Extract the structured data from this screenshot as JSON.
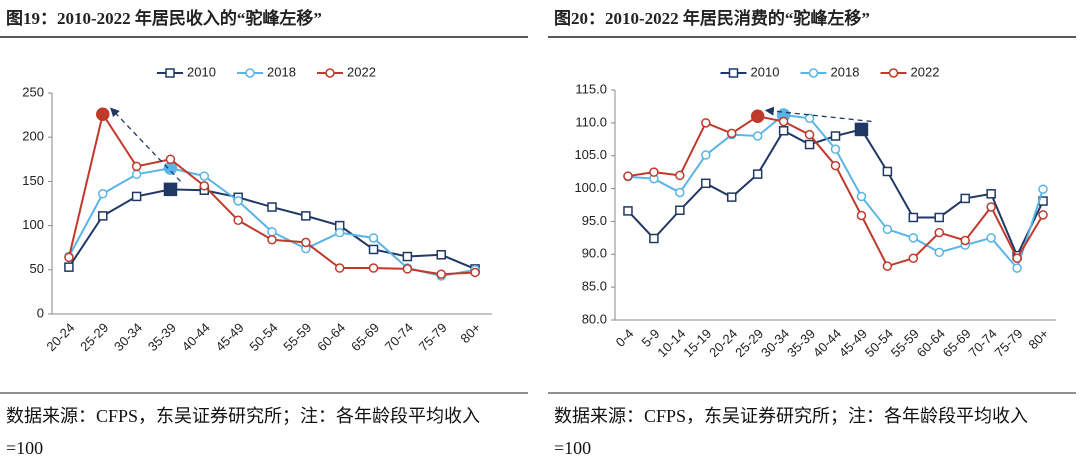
{
  "chart_data": [
    {
      "type": "line",
      "title": "图19：2010-2022 年居民收入的“驼峰左移”",
      "categories": [
        "20-24",
        "25-29",
        "30-34",
        "35-39",
        "40-44",
        "45-49",
        "50-54",
        "55-59",
        "60-64",
        "65-69",
        "70-74",
        "75-79",
        "80+"
      ],
      "series": [
        {
          "name": "2010",
          "color": "#1f3864",
          "values": [
            53,
            111,
            133,
            141,
            140,
            132,
            121,
            111,
            100,
            73,
            65,
            67,
            51
          ]
        },
        {
          "name": "2018",
          "color": "#5ab4e6",
          "values": [
            65,
            136,
            158,
            165,
            156,
            128,
            93,
            74,
            92,
            86,
            52,
            43,
            50
          ]
        },
        {
          "name": "2022",
          "color": "#c0392b",
          "values": [
            64,
            226,
            167,
            175,
            145,
            106,
            84,
            81,
            52,
            52,
            51,
            45,
            47
          ]
        }
      ],
      "ylim": [
        0,
        250
      ],
      "yticks": [
        0,
        50,
        100,
        150,
        200,
        250
      ],
      "source": "数据来源：CFPS，东吴证券研究所；注：各年龄段平均收入=100"
    },
    {
      "type": "line",
      "title": "图20：2010-2022 年居民消费的“驼峰左移”",
      "categories": [
        "0-4",
        "5-9",
        "10-14",
        "15-19",
        "20-24",
        "25-29",
        "30-34",
        "35-39",
        "40-44",
        "45-49",
        "50-54",
        "55-59",
        "60-64",
        "65-69",
        "70-74",
        "75-79",
        "80+"
      ],
      "series": [
        {
          "name": "2010",
          "color": "#1f3864",
          "values": [
            96.6,
            92.4,
            96.7,
            100.8,
            98.7,
            102.2,
            108.8,
            106.7,
            108.0,
            109.0,
            102.6,
            95.6,
            95.6,
            98.5,
            99.2,
            89.8,
            98.1
          ]
        },
        {
          "name": "2018",
          "color": "#5ab4e6",
          "values": [
            101.8,
            101.5,
            99.4,
            105.1,
            108.2,
            108.0,
            111.2,
            110.7,
            106.0,
            98.8,
            93.8,
            92.5,
            90.3,
            91.4,
            92.5,
            87.9,
            99.9
          ]
        },
        {
          "name": "2022",
          "color": "#c0392b",
          "values": [
            101.9,
            102.5,
            102.0,
            110.0,
            108.4,
            111.0,
            110.2,
            108.2,
            103.5,
            95.9,
            88.2,
            89.4,
            93.3,
            92.1,
            97.2,
            89.4,
            96.0
          ]
        }
      ],
      "ylim": [
        80,
        115
      ],
      "yticks": [
        {
          "value": 80,
          "label": "80.0"
        },
        {
          "value": 85,
          "label": "85.0"
        },
        {
          "value": 90,
          "label": "90.0"
        },
        {
          "value": 95,
          "label": "95.0"
        },
        {
          "value": 100,
          "label": "100.0"
        },
        {
          "value": 105,
          "label": "105.0"
        },
        {
          "value": 110,
          "label": "110.0"
        },
        {
          "value": 115,
          "label": "115.0"
        }
      ],
      "source": "数据来源：CFPS，东吴证券研究所；注：各年龄段平均收入=100"
    }
  ]
}
